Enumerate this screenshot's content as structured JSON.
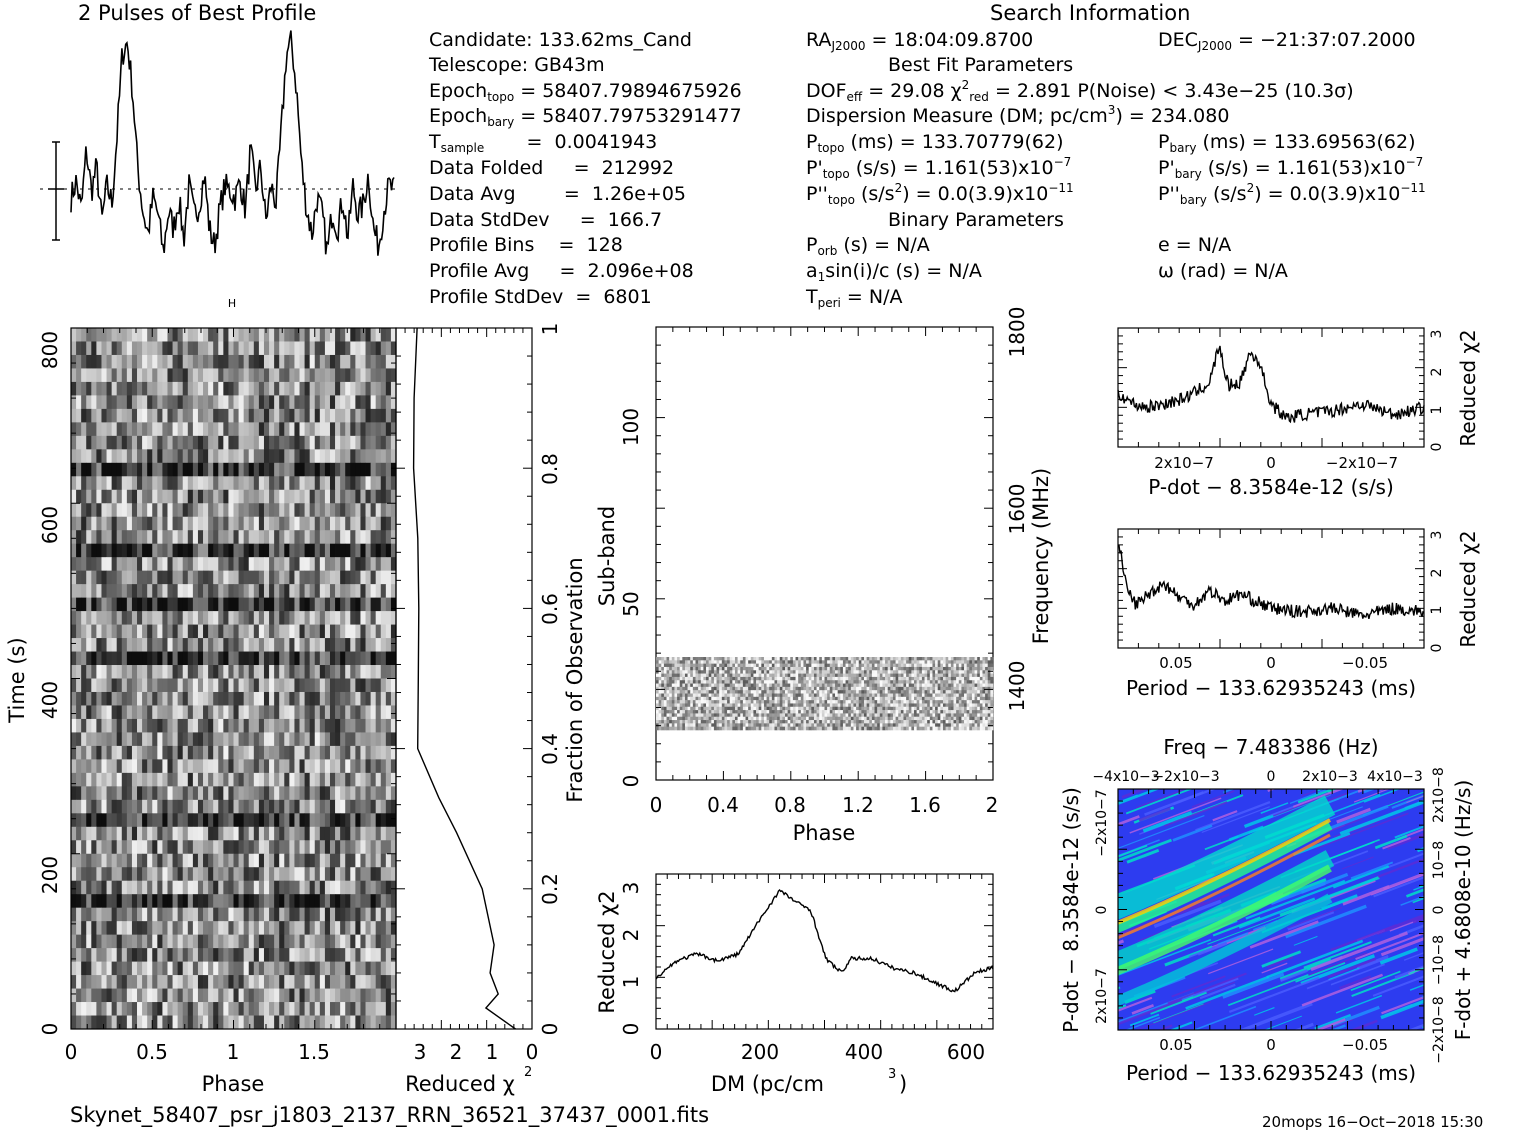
{
  "titles": {
    "profile": "2 Pulses of Best Profile",
    "search": "Search Information",
    "best_fit": "Best Fit Parameters",
    "binary": "Binary Parameters"
  },
  "info_left": [
    [
      "Candidate:  133.62ms_Cand",
      ""
    ],
    [
      "Telescope:  GB43m",
      ""
    ],
    [
      "Epoch",
      "topo",
      " = 58407.79894675926"
    ],
    [
      "Epoch",
      "bary",
      " = 58407.79753291477"
    ],
    [
      "T",
      "sample",
      "       =  0.0041943"
    ],
    [
      "Data Folded",
      "",
      "     =  212992"
    ],
    [
      "Data Avg",
      "",
      "        =  1.26e+05"
    ],
    [
      "Data StdDev",
      "",
      "     =  166.7"
    ],
    [
      "Profile Bins",
      "",
      "    =  128"
    ],
    [
      "Profile Avg",
      "",
      "     =  2.096e+08"
    ],
    [
      "Profile StdDev",
      "",
      "  =  6801"
    ]
  ],
  "info_mid": {
    "ra": "RAJ2000 = 18:04:09.8700",
    "dof": "DOFeff = 29.08  χ2red = 2.891  P(Noise) < 3.43e−25  (10.3σ)",
    "dm": "Dispersion Measure (DM; pc/cm3) = 234.080",
    "ptopo": "Ptopo (ms) =  133.70779(62)",
    "pdtopo": "P'topo (s/s) =  1.161(53)x10−7",
    "pddtopo": "P''topo (s/s2) = 0.0(3.9)x10−11",
    "porb": "Porb (s) = N/A",
    "asini": "a1sin(i)/c (s) = N/A",
    "tperi": "Tperi = N/A"
  },
  "info_right": {
    "dec": "DECJ2000 = −21:37:07.2000",
    "pbary": "Pbary (ms) =  133.69563(62)",
    "pdbary": "P'bary (s/s) =  1.161(53)x10−7",
    "pddbary": "P''bary (s/s2) = 0.0(3.9)x10−11",
    "e": "e = N/A",
    "omega": "ω (rad) = N/A"
  },
  "footer": {
    "filename": "Skynet_58407_psr_j1803_2137_RRN_36521_37437_0001.fits",
    "stamp": "20mops 16−Oct−2018 15:30"
  },
  "colors": {
    "ink": "#000000",
    "heat_bg": "#2a3cff",
    "heat_hi": "#00e5e5",
    "heat_peak": "#ffd000"
  },
  "chart_data": [
    {
      "type": "line",
      "title": "2 Pulses of Best Profile",
      "x": "Phase 0–2 (two cycles)",
      "series": [
        {
          "name": "",
          "values": [
            0.35,
            0.42,
            0.3,
            0.55,
            0.38,
            0.48,
            0.25,
            0.4,
            0.33,
            0.62,
            0.95,
            1.0,
            0.8,
            0.48,
            0.3,
            0.2,
            0.35,
            0.28,
            0.12,
            0.3,
            0.22,
            0.35,
            0.18,
            0.4,
            0.28,
            0.32,
            0.45,
            0.22,
            0.15,
            0.3,
            0.4,
            0.38,
            0.35,
            0.42,
            0.3,
            0.55,
            0.38,
            0.48,
            0.25,
            0.4,
            0.33,
            0.62,
            0.95,
            1.0,
            0.8,
            0.48,
            0.3,
            0.2,
            0.35,
            0.28,
            0.12,
            0.3,
            0.22,
            0.35,
            0.18,
            0.4,
            0.28,
            0.32,
            0.45,
            0.22,
            0.15,
            0.3,
            0.4,
            0.38
          ]
        }
      ]
    },
    {
      "type": "heatmap",
      "xlabel": "Phase",
      "ylabel": "Time (s)",
      "xticks": [
        "0",
        "0.5",
        "1",
        "1.5"
      ],
      "yticks": [
        "0",
        "200",
        "400",
        "600",
        "800"
      ],
      "xlim": [
        0,
        2
      ],
      "ylim": [
        0,
        900
      ]
    },
    {
      "type": "line",
      "xlabel": "Reduced χ2",
      "ylabel": "Fraction of Observation",
      "xticks": [
        "3",
        "2",
        "1",
        "0"
      ],
      "yticks": [
        "0",
        "0.2",
        "0.4",
        "0.6",
        "0.8",
        "1"
      ],
      "x": [
        0.0,
        0.03,
        0.05,
        0.08,
        0.12,
        0.2,
        0.28,
        0.33,
        0.4,
        0.5,
        0.6,
        0.7,
        0.8,
        0.9,
        1.0
      ],
      "y": [
        0.4,
        1.2,
        0.9,
        1.05,
        1.0,
        1.3,
        1.9,
        2.4,
        2.95,
        2.95,
        2.95,
        2.95,
        3.0,
        3.0,
        3.0
      ]
    },
    {
      "type": "heatmap",
      "xlabel": "Phase",
      "ylabel": "Sub-band",
      "y2label": "Frequency (MHz)",
      "xticks": [
        "0",
        "0.4",
        "0.8",
        "1.2",
        "1.6",
        "2"
      ],
      "yticks": [
        "0",
        "50",
        "100"
      ],
      "y2ticks": [
        "1400",
        "1600",
        "1800"
      ],
      "band_rows": [
        14,
        35
      ],
      "ylim": [
        0,
        128
      ]
    },
    {
      "type": "line",
      "xlabel": "DM (pc/cm3)",
      "ylabel": "Reduced χ2",
      "xticks": [
        "0",
        "200",
        "400",
        "600"
      ],
      "yticks": [
        "0",
        "1",
        "2",
        "3"
      ],
      "x": [
        0,
        40,
        80,
        120,
        160,
        200,
        240,
        280,
        300,
        330,
        360,
        380,
        420,
        460,
        500,
        540,
        580,
        620,
        655
      ],
      "y": [
        1.1,
        1.45,
        1.6,
        1.45,
        1.6,
        2.3,
        2.95,
        2.65,
        2.55,
        1.5,
        1.2,
        1.5,
        1.5,
        1.3,
        1.2,
        1.0,
        0.8,
        1.2,
        1.3
      ]
    },
    {
      "type": "line",
      "xlabel": "P-dot − 8.3584e-12 (s/s)",
      "ylabel": "Reduced χ2",
      "xticks": [
        "2x10−7",
        "0",
        "−2x10−7"
      ],
      "yticks": [
        "0",
        "1",
        "2",
        "3"
      ],
      "x": [
        0,
        0.05,
        0.1,
        0.15,
        0.2,
        0.25,
        0.3,
        0.33,
        0.36,
        0.4,
        0.43,
        0.46,
        0.5,
        0.55,
        0.6,
        0.7,
        0.8,
        0.9,
        1.0
      ],
      "y": [
        1.5,
        1.2,
        1.1,
        1.2,
        1.3,
        1.5,
        1.8,
        2.8,
        1.7,
        1.8,
        2.6,
        2.4,
        1.2,
        0.8,
        0.9,
        1.0,
        1.2,
        0.9,
        1.1
      ]
    },
    {
      "type": "line",
      "xlabel": "Period − 133.62935243 (ms)",
      "ylabel": "Reduced χ2",
      "xticks": [
        "0.05",
        "0",
        "−0.05"
      ],
      "yticks": [
        "0",
        "1",
        "2",
        "3"
      ],
      "x": [
        0,
        0.03,
        0.06,
        0.1,
        0.15,
        0.2,
        0.25,
        0.3,
        0.35,
        0.4,
        0.45,
        0.5,
        0.6,
        0.7,
        0.8,
        0.9,
        1.0
      ],
      "y": [
        3.0,
        1.6,
        1.2,
        1.5,
        1.8,
        1.4,
        1.2,
        1.6,
        1.3,
        1.5,
        1.3,
        1.1,
        1.0,
        1.1,
        0.9,
        1.1,
        1.0
      ]
    },
    {
      "type": "heatmap",
      "title": "Freq − 7.483386 (Hz)",
      "xlabel": "Period − 133.62935243 (ms)",
      "ylabel": "P-dot − 8.3584e-12 (s/s)",
      "y2label": "F-dot + 4.6808e-10 (Hz/s)",
      "xticks": [
        "0.05",
        "0",
        "−0.05"
      ],
      "x2ticks": [
        "−4x10−3",
        "−2x10−3",
        "0",
        "2x10−3",
        "4x10−3"
      ],
      "yticks": [
        "2x10−7",
        "0",
        "−2x10−7"
      ],
      "y2ticks": [
        "−2x10−8",
        "−10−8",
        "0",
        "10−8",
        "2x10−8"
      ]
    }
  ]
}
